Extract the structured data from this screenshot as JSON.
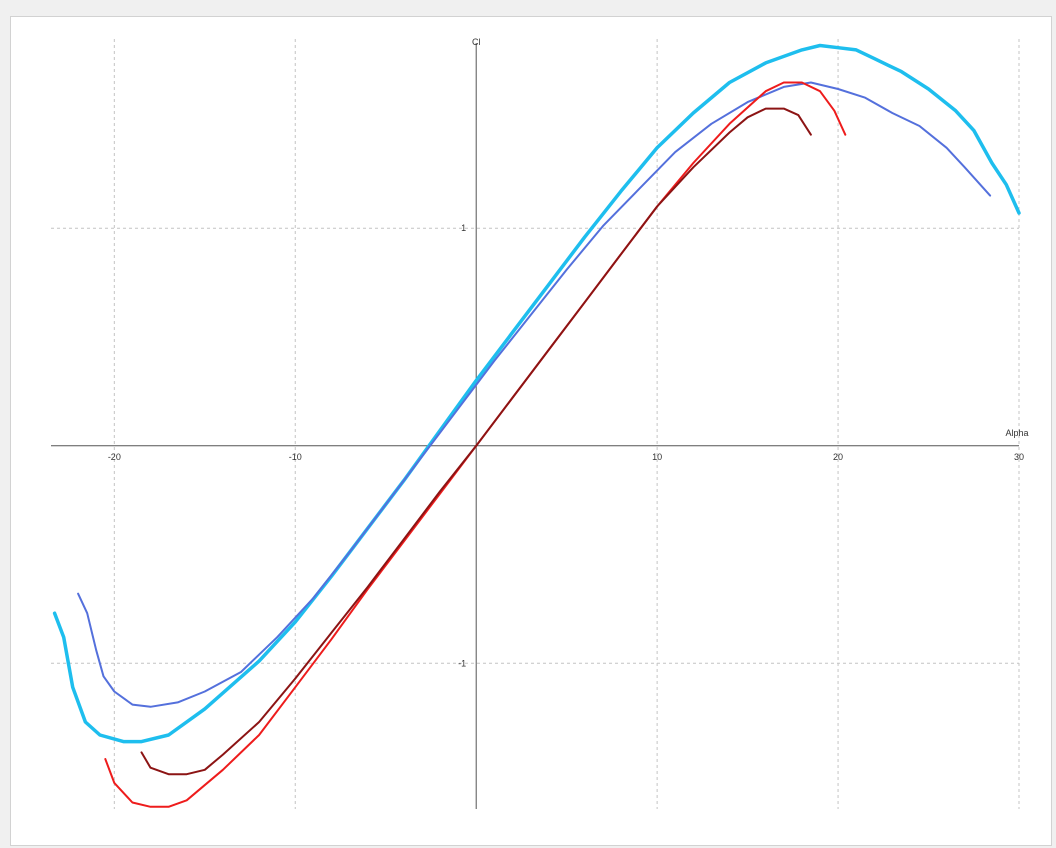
{
  "chart_data": {
    "type": "line",
    "xlabel": "Alpha",
    "ylabel": "Cl",
    "xlim": [
      -23.5,
      30
    ],
    "ylim": [
      -1.67,
      1.87
    ],
    "grid": true,
    "x_ticks": [
      {
        "value": -20,
        "label": "-20"
      },
      {
        "value": -10,
        "label": "-10"
      },
      {
        "value": 10,
        "label": "10"
      },
      {
        "value": 20,
        "label": "20"
      },
      {
        "value": 30,
        "label": "30"
      }
    ],
    "y_ticks": [
      {
        "value": 1,
        "label": "1"
      },
      {
        "value": -1,
        "label": "-1"
      }
    ],
    "series": [
      {
        "color": "#1ebeee",
        "width": 3.5,
        "points": [
          [
            -23.3,
            -0.77
          ],
          [
            -22.8,
            -0.88
          ],
          [
            -22.3,
            -1.11
          ],
          [
            -21.6,
            -1.27
          ],
          [
            -20.8,
            -1.33
          ],
          [
            -19.5,
            -1.36
          ],
          [
            -18.5,
            -1.36
          ],
          [
            -17,
            -1.33
          ],
          [
            -15,
            -1.21
          ],
          [
            -12,
            -0.99
          ],
          [
            -10,
            -0.81
          ],
          [
            -8,
            -0.6
          ],
          [
            -6,
            -0.38
          ],
          [
            -4,
            -0.16
          ],
          [
            -2,
            0.07
          ],
          [
            0,
            0.3
          ],
          [
            2,
            0.52
          ],
          [
            4,
            0.74
          ],
          [
            6,
            0.96
          ],
          [
            8,
            1.17
          ],
          [
            10,
            1.37
          ],
          [
            12,
            1.53
          ],
          [
            14,
            1.67
          ],
          [
            16,
            1.76
          ],
          [
            18,
            1.82
          ],
          [
            19,
            1.84
          ],
          [
            20,
            1.83
          ],
          [
            21,
            1.82
          ],
          [
            22,
            1.78
          ],
          [
            23.5,
            1.72
          ],
          [
            25,
            1.64
          ],
          [
            26.5,
            1.54
          ],
          [
            27.5,
            1.45
          ],
          [
            28.5,
            1.3
          ],
          [
            29.3,
            1.2
          ],
          [
            30,
            1.07
          ]
        ]
      },
      {
        "color": "#5470dc",
        "width": 2,
        "points": [
          [
            -22,
            -0.68
          ],
          [
            -21.5,
            -0.77
          ],
          [
            -21,
            -0.94
          ],
          [
            -20.6,
            -1.06
          ],
          [
            -20,
            -1.13
          ],
          [
            -19,
            -1.19
          ],
          [
            -18,
            -1.2
          ],
          [
            -16.5,
            -1.18
          ],
          [
            -15,
            -1.13
          ],
          [
            -13,
            -1.04
          ],
          [
            -11,
            -0.88
          ],
          [
            -9,
            -0.7
          ],
          [
            -7,
            -0.49
          ],
          [
            -5,
            -0.27
          ],
          [
            -3,
            -0.05
          ],
          [
            -1,
            0.17
          ],
          [
            1,
            0.39
          ],
          [
            3,
            0.6
          ],
          [
            5,
            0.81
          ],
          [
            7,
            1.01
          ],
          [
            9,
            1.18
          ],
          [
            11,
            1.35
          ],
          [
            13,
            1.48
          ],
          [
            15,
            1.58
          ],
          [
            17,
            1.65
          ],
          [
            18.5,
            1.67
          ],
          [
            20,
            1.64
          ],
          [
            21.5,
            1.6
          ],
          [
            23,
            1.53
          ],
          [
            24.5,
            1.47
          ],
          [
            26,
            1.37
          ],
          [
            27,
            1.28
          ],
          [
            28.4,
            1.15
          ]
        ]
      },
      {
        "color": "#ee1c1c",
        "width": 2,
        "points": [
          [
            -20.5,
            -1.44
          ],
          [
            -20,
            -1.55
          ],
          [
            -19,
            -1.64
          ],
          [
            -18,
            -1.66
          ],
          [
            -17,
            -1.66
          ],
          [
            -16,
            -1.63
          ],
          [
            -14,
            -1.49
          ],
          [
            -12,
            -1.33
          ],
          [
            -10,
            -1.11
          ],
          [
            -8,
            -0.89
          ],
          [
            -6,
            -0.66
          ],
          [
            -4,
            -0.44
          ],
          [
            -2,
            -0.22
          ],
          [
            0,
            0
          ],
          [
            2,
            0.22
          ],
          [
            4,
            0.44
          ],
          [
            6,
            0.66
          ],
          [
            8,
            0.88
          ],
          [
            10,
            1.1
          ],
          [
            12,
            1.3
          ],
          [
            14,
            1.48
          ],
          [
            16,
            1.63
          ],
          [
            17,
            1.67
          ],
          [
            18,
            1.67
          ],
          [
            19,
            1.63
          ],
          [
            19.8,
            1.54
          ],
          [
            20.4,
            1.43
          ]
        ]
      },
      {
        "color": "#8c1414",
        "width": 2,
        "points": [
          [
            -18.5,
            -1.41
          ],
          [
            -18,
            -1.48
          ],
          [
            -17,
            -1.51
          ],
          [
            -16,
            -1.51
          ],
          [
            -15,
            -1.49
          ],
          [
            -14,
            -1.42
          ],
          [
            -12,
            -1.27
          ],
          [
            -10,
            -1.07
          ],
          [
            -8,
            -0.86
          ],
          [
            -6,
            -0.65
          ],
          [
            -4,
            -0.43
          ],
          [
            -2,
            -0.21
          ],
          [
            0,
            0
          ],
          [
            2,
            0.22
          ],
          [
            4,
            0.44
          ],
          [
            6,
            0.66
          ],
          [
            8,
            0.88
          ],
          [
            10,
            1.1
          ],
          [
            12,
            1.28
          ],
          [
            14,
            1.44
          ],
          [
            15,
            1.51
          ],
          [
            16,
            1.55
          ],
          [
            17,
            1.55
          ],
          [
            17.8,
            1.52
          ],
          [
            18.5,
            1.43
          ]
        ]
      }
    ]
  }
}
